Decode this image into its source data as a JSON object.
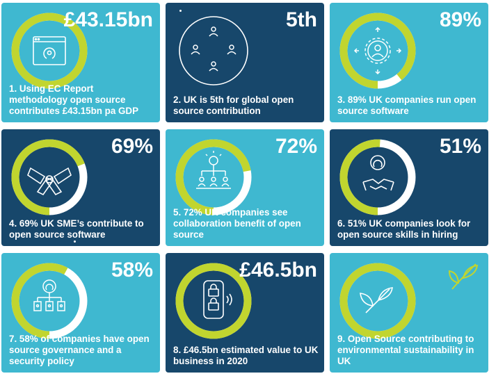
{
  "colors": {
    "light_tile": "#3fb8d0",
    "dark_tile": "#17476b",
    "ring": "#c1d52f",
    "ring_track": "#ffffff",
    "text": "#ffffff"
  },
  "tiles": [
    {
      "stat": "£43.15bn",
      "text": "1. Using EC Report methodology open source contributes £43.15bn pa GDP",
      "ring_fraction": 1.0,
      "icon": "open-source-screen-icon"
    },
    {
      "stat": "5th",
      "text": "2. UK is 5th for global open source contribution",
      "ring_fraction": 0,
      "icon": "people-network-icon"
    },
    {
      "stat": "89%",
      "text": "3. 89% UK companies run open source software",
      "ring_fraction": 0.89,
      "icon": "gear-user-icon"
    },
    {
      "stat": "69%",
      "text": "4. 69% UK SME’s contribute to open source software",
      "ring_fraction": 0.69,
      "icon": "hands-together-icon"
    },
    {
      "stat": "72%",
      "text": "5. 72% UK companies see collaboration benefit of open source",
      "ring_fraction": 0.72,
      "icon": "idea-team-icon"
    },
    {
      "stat": "51%",
      "text": "6. 51% UK companies look for open source skills in hiring",
      "ring_fraction": 0.51,
      "icon": "handshake-icon"
    },
    {
      "stat": "58%",
      "text": "7. 58% of companies have open source governance and a security policy",
      "ring_fraction": 0.58,
      "icon": "security-hierarchy-icon"
    },
    {
      "stat": "£46.5bn",
      "text": "8. £46.5bn estimated value to UK business in 2020",
      "ring_fraction": 1.0,
      "icon": "secure-phone-icon"
    },
    {
      "stat": "",
      "text": "9. Open Source contributing to environmental sustainability in UK",
      "ring_fraction": 1.0,
      "icon": "leaf-icon"
    }
  ]
}
